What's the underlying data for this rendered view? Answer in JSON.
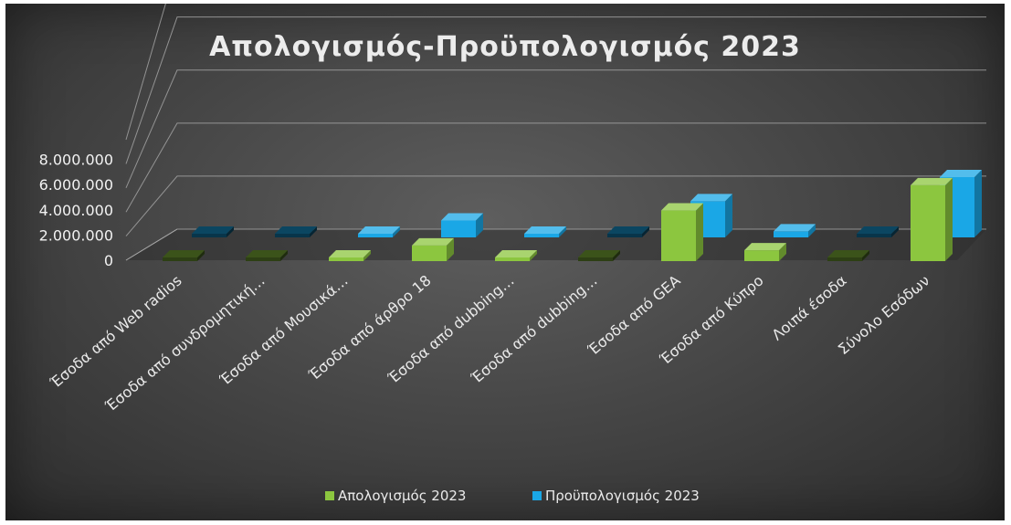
{
  "chart_data": {
    "type": "bar",
    "subtype": "3d-clustered-column",
    "title": "Απολογισμός-Προϋπολογισμός 2023",
    "xlabel": "",
    "ylabel": "",
    "ylim": [
      0,
      8000000
    ],
    "yticks": [
      "0",
      "2.000.000",
      "4.000.000",
      "6.000.000",
      "8.000.000"
    ],
    "grid": true,
    "legend_position": "bottom",
    "categories": [
      "Έσοδα από Web radios",
      "Έσοδα από συνδρομητική…",
      "Έσοδα από Μουσικά…",
      "Έσοδα από άρθρο 18",
      "Έσοδα από dubbing…",
      "Έσοδα από dubbing…",
      "Έσοδα από GEA",
      "Έσοδα από Κύπρο",
      "Λοιπά έσοδα",
      "Σύνολο Εσόδων"
    ],
    "series": [
      {
        "name": "Απολογισμός 2023",
        "color": "#8cc63f",
        "values": [
          30000,
          20000,
          250000,
          1300000,
          300000,
          20000,
          4200000,
          900000,
          30000,
          6300000
        ]
      },
      {
        "name": "Προϋπολογισμός 2023",
        "color": "#1aa7e6",
        "values": [
          50000,
          50000,
          300000,
          1400000,
          300000,
          50000,
          3000000,
          500000,
          50000,
          5000000
        ]
      }
    ]
  }
}
